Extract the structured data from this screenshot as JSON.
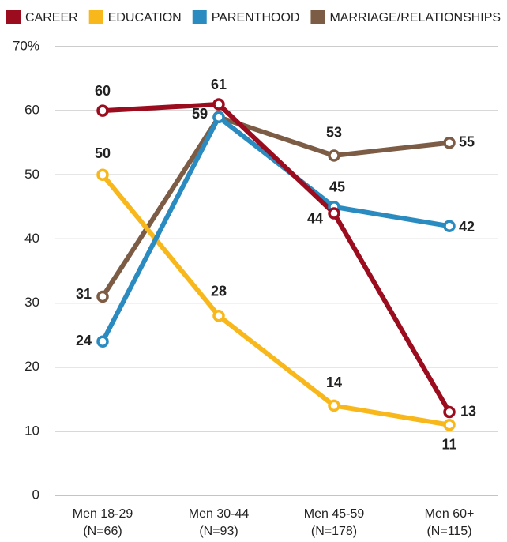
{
  "chart_data": {
    "type": "line",
    "categories": [
      "Men 18-29",
      "Men 30-44",
      "Men 45-59",
      "Men 60+"
    ],
    "sample_sizes": [
      "(N=66)",
      "(N=93)",
      "(N=178)",
      "(N=115)"
    ],
    "series": [
      {
        "name": "CAREER",
        "color": "#9b0d1e",
        "values": [
          60,
          61,
          44,
          13
        ]
      },
      {
        "name": "EDUCATION",
        "color": "#f8b81c",
        "values": [
          50,
          28,
          14,
          11
        ]
      },
      {
        "name": "PARENTHOOD",
        "color": "#2a8bc0",
        "values": [
          24,
          59,
          45,
          42
        ]
      },
      {
        "name": "MARRIAGE/RELATIONSHIPS",
        "color": "#7d5c45",
        "values": [
          31,
          59,
          53,
          55
        ]
      }
    ],
    "ylim": [
      0,
      70
    ],
    "yticks": [
      0,
      10,
      20,
      30,
      40,
      50,
      60,
      {
        "value": 70,
        "label": "70%"
      }
    ],
    "grid": true
  }
}
